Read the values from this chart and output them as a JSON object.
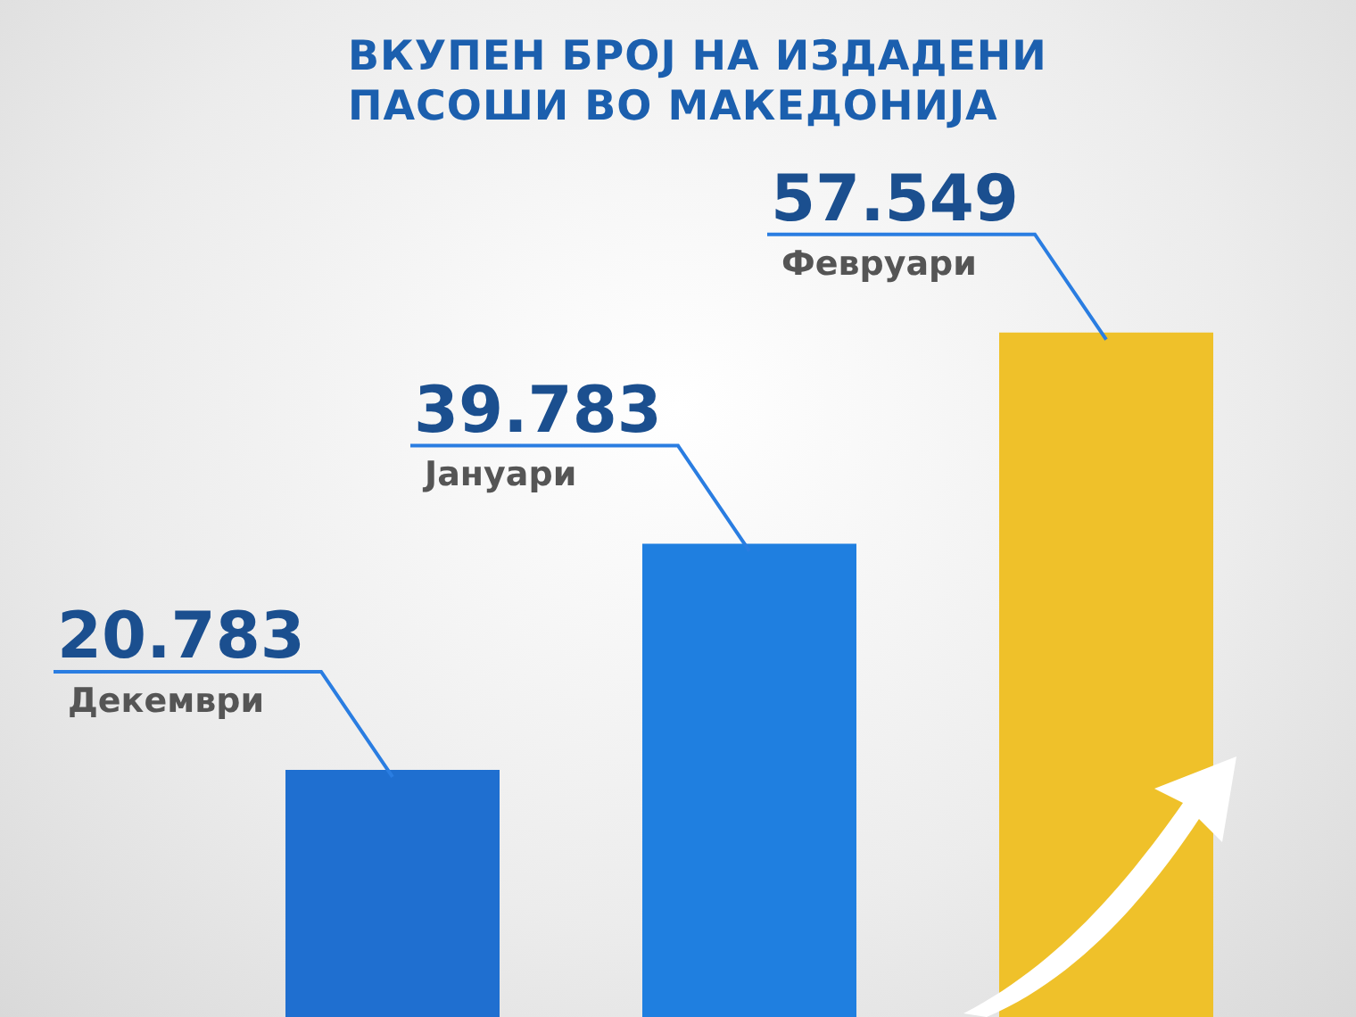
{
  "chart_data": {
    "type": "bar",
    "title": "ВКУПЕН БРОЈ НА ИЗДАДЕНИ ПАСОШИ ВО МАКЕДОНИЈА",
    "categories": [
      null,
      null,
      null
    ],
    "annotations": [
      "Декември",
      "Јануари",
      "Февруари"
    ],
    "values": [
      20783,
      39783,
      57549
    ],
    "value_labels": [
      "20.783",
      "39.783",
      "57.549"
    ],
    "colors": [
      "#1f6fd0",
      "#1f7fe0",
      "#efc12a"
    ]
  }
}
